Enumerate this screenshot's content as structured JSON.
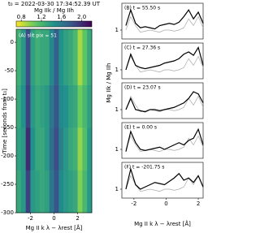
{
  "chart_data": [
    {
      "type": "heatmap",
      "title": "t₀ = 2022-03-30 17:34:52.39 UT",
      "colorbar_label": "Mg IIk / Mg IIh",
      "annotation": "(A) slit pix = 51",
      "xlabel": "Mg II k λ − λrest [Å]",
      "ylabel": "Time [seconds from t₀]",
      "colormap": "viridis_r",
      "clim": [
        0.7,
        2.2
      ],
      "cticks": [
        0.8,
        1.2,
        1.6,
        {
          "value": 2,
          "label": "2.0"
        }
      ],
      "xbins": [
        -3.2,
        -2.8,
        -2.4,
        -2.0,
        -1.6,
        -1.2,
        -0.8,
        -0.4,
        0.0,
        0.4,
        0.8,
        1.2,
        1.6,
        2.0,
        2.4,
        2.8,
        3.2
      ],
      "ybins": [
        -300,
        -225,
        -150,
        -75,
        23
      ],
      "values": [
        [
          1.3,
          1.4,
          1.9,
          1.4,
          1.35,
          1.3,
          1.35,
          1.6,
          1.8,
          1.5,
          1.4,
          1.35,
          1.3,
          1.0,
          1.2,
          1.4
        ],
        [
          1.35,
          1.4,
          2.0,
          1.45,
          1.3,
          1.3,
          1.4,
          1.65,
          1.85,
          1.55,
          1.4,
          1.3,
          1.25,
          0.95,
          1.15,
          1.4
        ],
        [
          1.3,
          1.45,
          1.9,
          1.4,
          1.3,
          1.35,
          1.4,
          1.6,
          1.8,
          1.5,
          1.45,
          1.35,
          1.3,
          1.05,
          1.2,
          1.35
        ],
        [
          1.25,
          1.4,
          1.85,
          1.35,
          1.25,
          1.3,
          1.3,
          1.5,
          1.75,
          1.45,
          1.35,
          1.3,
          1.2,
          0.9,
          1.1,
          1.3
        ]
      ],
      "xlim": [
        -3.2,
        3.2
      ],
      "ylim": [
        -300,
        23
      ],
      "xticks": [
        -2,
        0,
        2
      ],
      "yticks": [
        0,
        -50,
        -100,
        -150,
        -200,
        -250,
        -300
      ]
    },
    {
      "type": "line",
      "title": "(B) t = 55.50 s",
      "xlim": [
        -2.75,
        2.3
      ],
      "ylim": [
        0.6,
        2.2
      ],
      "yticks": [
        1
      ],
      "x": [
        -2.5,
        -2.2,
        -1.9,
        -1.6,
        -1.3,
        -1.0,
        -0.7,
        -0.4,
        -0.1,
        0.2,
        0.5,
        0.8,
        1.1,
        1.4,
        1.7,
        2.0,
        2.3
      ],
      "series": [
        {
          "color": "#aaaaaa",
          "values": [
            1.0,
            1.6,
            1.2,
            0.9,
            0.95,
            1.0,
            0.95,
            0.9,
            1.0,
            1.0,
            0.95,
            1.0,
            1.1,
            1.5,
            1.2,
            1.6,
            1.1
          ]
        },
        {
          "color": "#000000",
          "values": [
            1.2,
            1.9,
            1.3,
            1.1,
            1.15,
            1.1,
            1.05,
            1.2,
            1.25,
            1.3,
            1.25,
            1.35,
            1.6,
            1.9,
            1.5,
            1.8,
            1.3
          ]
        }
      ]
    },
    {
      "type": "line",
      "title": "(C) t = 27.36 s",
      "xlim": [
        -2.75,
        2.3
      ],
      "ylim": [
        0.6,
        2.2
      ],
      "yticks": [
        1
      ],
      "x": [
        -2.5,
        -2.2,
        -1.9,
        -1.6,
        -1.3,
        -1.0,
        -0.7,
        -0.4,
        -0.1,
        0.2,
        0.5,
        0.8,
        1.1,
        1.4,
        1.7,
        2.0,
        2.3
      ],
      "series": [
        {
          "color": "#aaaaaa",
          "values": [
            1.0,
            1.6,
            1.2,
            0.9,
            0.95,
            1.0,
            0.95,
            0.9,
            1.0,
            1.0,
            0.95,
            1.0,
            1.1,
            1.5,
            1.2,
            1.6,
            1.1
          ]
        },
        {
          "color": "#000000",
          "values": [
            1.0,
            1.7,
            1.2,
            1.1,
            1.05,
            1.1,
            1.15,
            1.2,
            1.3,
            1.35,
            1.4,
            1.5,
            1.7,
            1.8,
            1.65,
            2.0,
            1.2
          ]
        }
      ]
    },
    {
      "type": "line",
      "title": "(D) t = 23.07 s",
      "ylabel": "Mg IIk / Mg IIh",
      "xlim": [
        -2.75,
        2.3
      ],
      "ylim": [
        0.6,
        2.2
      ],
      "yticks": [
        1
      ],
      "x": [
        -2.5,
        -2.2,
        -1.9,
        -1.6,
        -1.3,
        -1.0,
        -0.7,
        -0.4,
        -0.1,
        0.2,
        0.5,
        0.8,
        1.1,
        1.4,
        1.7,
        2.0,
        2.3
      ],
      "series": [
        {
          "color": "#aaaaaa",
          "values": [
            1.0,
            1.6,
            1.2,
            0.9,
            0.95,
            1.0,
            0.95,
            0.9,
            1.0,
            1.0,
            0.95,
            1.0,
            1.1,
            1.5,
            1.2,
            1.6,
            1.1
          ]
        },
        {
          "color": "#000000",
          "values": [
            1.0,
            1.5,
            1.0,
            0.95,
            0.9,
            1.0,
            1.0,
            0.95,
            1.0,
            1.05,
            1.1,
            1.2,
            1.3,
            1.5,
            1.8,
            1.7,
            1.3
          ]
        }
      ]
    },
    {
      "type": "line",
      "title": "(E) t = 0.00 s",
      "xlim": [
        -2.75,
        2.3
      ],
      "ylim": [
        0.6,
        2.2
      ],
      "yticks": [
        1
      ],
      "x": [
        -2.5,
        -2.2,
        -1.9,
        -1.6,
        -1.3,
        -1.0,
        -0.7,
        -0.4,
        -0.1,
        0.2,
        0.5,
        0.8,
        1.1,
        1.4,
        1.7,
        2.0,
        2.3
      ],
      "series": [
        {
          "color": "#aaaaaa",
          "values": [
            1.0,
            1.6,
            1.2,
            0.9,
            0.95,
            1.0,
            0.95,
            0.9,
            1.0,
            1.0,
            0.95,
            1.0,
            1.1,
            1.5,
            1.2,
            1.6,
            1.1
          ]
        },
        {
          "color": "#000000",
          "values": [
            0.9,
            1.8,
            1.3,
            1.0,
            0.95,
            1.0,
            1.05,
            1.1,
            1.0,
            1.1,
            1.2,
            1.3,
            1.2,
            1.4,
            1.5,
            1.9,
            1.2
          ]
        }
      ]
    },
    {
      "type": "line",
      "title": "(F) t = -201.75 s",
      "xlabel": "Mg II k λ − λrest [Å]",
      "xlim": [
        -2.75,
        2.3
      ],
      "ylim": [
        0.6,
        2.2
      ],
      "yticks": [
        1
      ],
      "xticks": [
        -2,
        0,
        2
      ],
      "x": [
        -2.5,
        -2.2,
        -1.9,
        -1.6,
        -1.3,
        -1.0,
        -0.7,
        -0.4,
        -0.1,
        0.2,
        0.5,
        0.8,
        1.1,
        1.4,
        1.7,
        2.0,
        2.3
      ],
      "series": [
        {
          "color": "#aaaaaa",
          "values": [
            1.0,
            1.6,
            1.2,
            0.9,
            0.95,
            1.0,
            0.95,
            0.9,
            1.0,
            1.0,
            0.95,
            1.0,
            1.1,
            1.5,
            1.2,
            1.6,
            1.1
          ]
        },
        {
          "color": "#000000",
          "values": [
            1.0,
            1.9,
            1.2,
            1.0,
            1.1,
            1.2,
            1.3,
            1.25,
            1.2,
            1.35,
            1.5,
            1.7,
            1.4,
            1.5,
            1.3,
            1.6,
            1.1
          ]
        }
      ]
    }
  ]
}
